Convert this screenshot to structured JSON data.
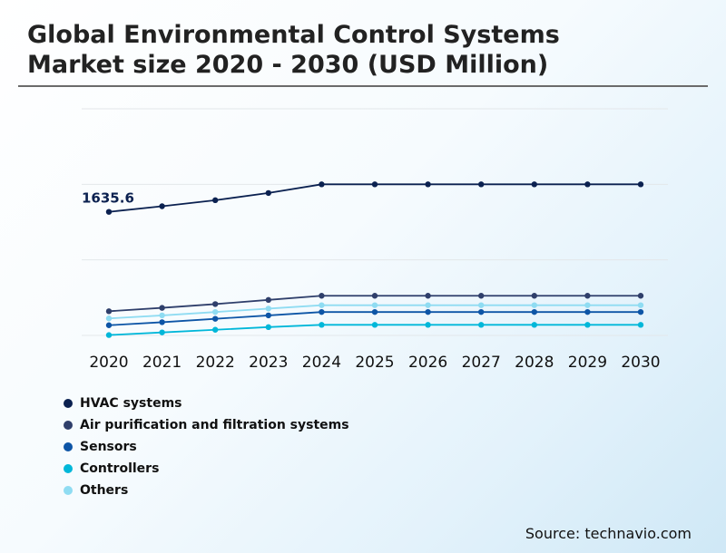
{
  "title_lines": [
    "Global Environmental Control Systems",
    "Market size 2020 - 2030 (USD Million)"
  ],
  "source": "Source: technavio.com",
  "chart_data": {
    "type": "line",
    "title": "Global Environmental Control Systems Market size 2020 - 2030 (USD Million)",
    "x": [
      "2020",
      "2021",
      "2022",
      "2023",
      "2024",
      "2025",
      "2026",
      "2027",
      "2028",
      "2029",
      "2030"
    ],
    "ylim": [
      0,
      3000
    ],
    "grid": true,
    "legend_position": "bottom-left",
    "annotation": {
      "series": 0,
      "index": 0,
      "text": "1635.6"
    },
    "series": [
      {
        "name": "HVAC systems",
        "color": "#0b2150",
        "values": [
          1635.6,
          1710,
          1790,
          1885,
          2000,
          2000,
          2000,
          2000,
          2000,
          2000,
          2000
        ]
      },
      {
        "name": "Air purification and filtration systems",
        "color": "#2f3f6b",
        "values": [
          320,
          365,
          415,
          470,
          525,
          525,
          525,
          525,
          525,
          525,
          525
        ]
      },
      {
        "name": "Sensors",
        "color": "#0d55a6",
        "values": [
          135,
          175,
          220,
          265,
          310,
          310,
          310,
          310,
          310,
          310,
          310
        ]
      },
      {
        "name": "Controllers",
        "color": "#00b7d9",
        "values": [
          5,
          40,
          75,
          110,
          140,
          140,
          140,
          140,
          140,
          140,
          140
        ]
      },
      {
        "name": "Others",
        "color": "#8fdcf2",
        "values": [
          225,
          265,
          310,
          355,
          400,
          400,
          400,
          400,
          400,
          400,
          400
        ]
      }
    ]
  }
}
